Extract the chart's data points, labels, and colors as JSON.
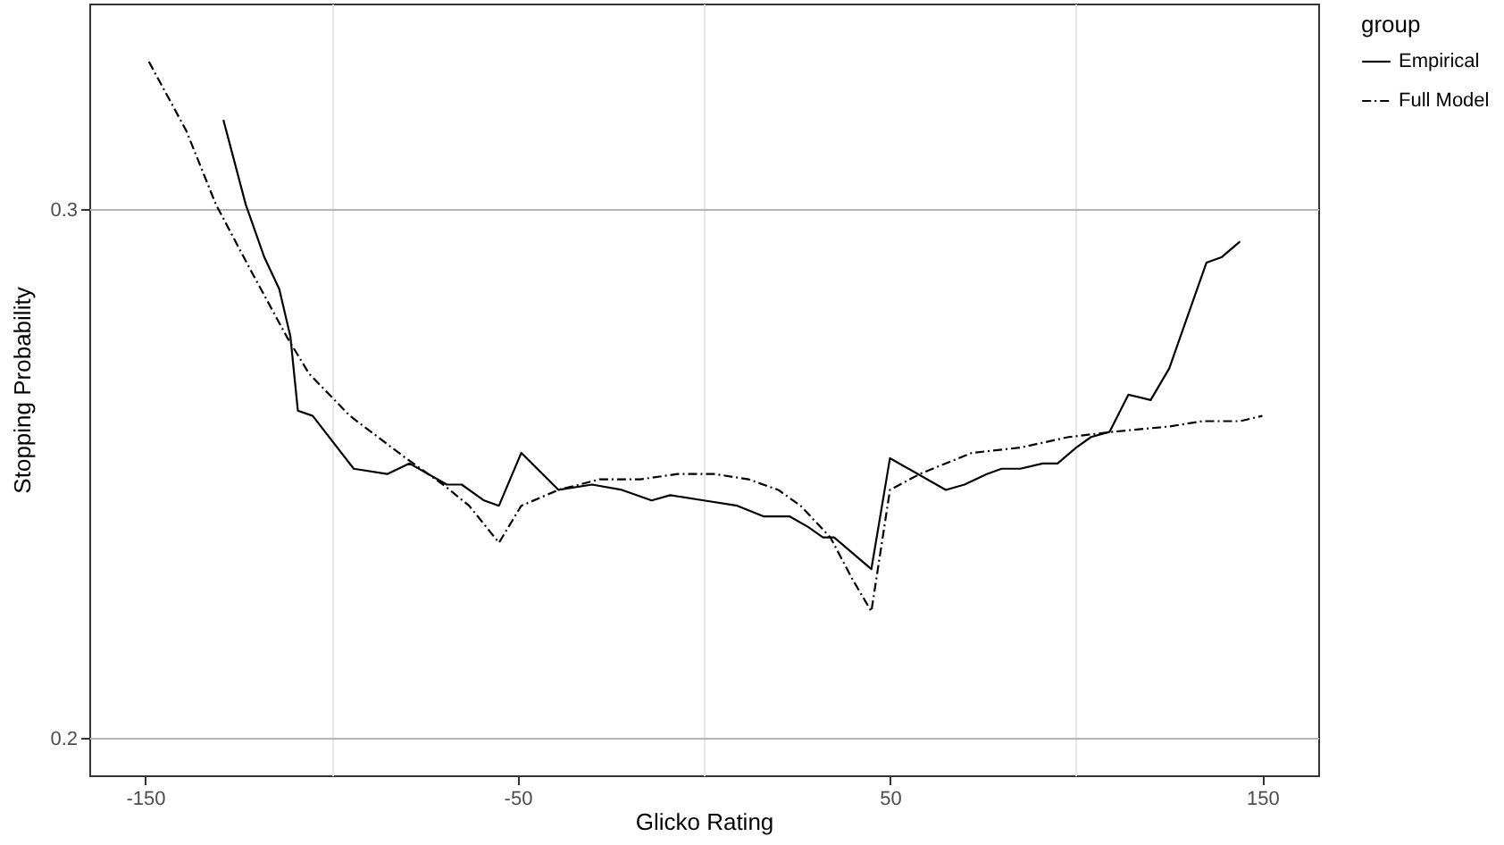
{
  "chart_data": {
    "type": "line",
    "xlabel": "Glicko Rating",
    "ylabel": "Stopping Probability",
    "legend_title": "group",
    "legend": "right",
    "grid": true,
    "xlim": [
      -165,
      165
    ],
    "ylim": [
      0.193,
      0.339
    ],
    "xticks": [
      -150,
      {
        "value": -100,
        "label": null
      },
      -50,
      {
        "value": 0,
        "label": null
      },
      50,
      {
        "value": 100,
        "label": null
      },
      150
    ],
    "yticks": [
      0.2,
      0.3
    ],
    "series": [
      {
        "name": "Empirical",
        "color": "#000000",
        "line_style": "solid",
        "x": [
          -129,
          -123,
          -118,
          -114,
          -111,
          -109,
          -105,
          -94,
          -85,
          -79,
          -69,
          -65,
          -59,
          -55,
          -49,
          -39,
          -30,
          -22,
          -14,
          -9,
          0,
          9,
          16,
          23,
          28,
          32,
          35,
          45,
          50,
          65,
          70,
          76,
          80,
          85,
          91,
          95,
          100,
          104,
          109,
          114,
          120,
          125,
          129,
          135,
          139,
          144
        ],
        "values": [
          0.317,
          0.301,
          0.291,
          0.285,
          0.276,
          0.262,
          0.261,
          0.251,
          0.25,
          0.252,
          0.248,
          0.248,
          0.245,
          0.244,
          0.254,
          0.247,
          0.248,
          0.247,
          0.245,
          0.246,
          0.245,
          0.244,
          0.242,
          0.242,
          0.24,
          0.238,
          0.238,
          0.232,
          0.253,
          0.247,
          0.248,
          0.25,
          0.251,
          0.251,
          0.252,
          0.252,
          0.255,
          0.257,
          0.258,
          0.265,
          0.264,
          0.27,
          0.278,
          0.29,
          0.291,
          0.294
        ]
      },
      {
        "name": "Full Model",
        "color": "#000000",
        "line_style": "dashed",
        "x": [
          -149,
          -139,
          -131,
          -122,
          -112,
          -106,
          -95,
          -80,
          -70,
          -63,
          -55,
          -49,
          -39,
          -28,
          -17,
          -7,
          3,
          12,
          20,
          26,
          34,
          40,
          45,
          50,
          58,
          72,
          85,
          98,
          110,
          125,
          134,
          144,
          150
        ],
        "values": [
          0.328,
          0.315,
          0.301,
          0.289,
          0.276,
          0.269,
          0.261,
          0.253,
          0.248,
          0.244,
          0.237,
          0.244,
          0.247,
          0.249,
          0.249,
          0.25,
          0.25,
          0.249,
          0.247,
          0.244,
          0.238,
          0.23,
          0.224,
          0.247,
          0.25,
          0.254,
          0.255,
          0.257,
          0.258,
          0.259,
          0.26,
          0.26,
          0.261
        ]
      }
    ]
  }
}
